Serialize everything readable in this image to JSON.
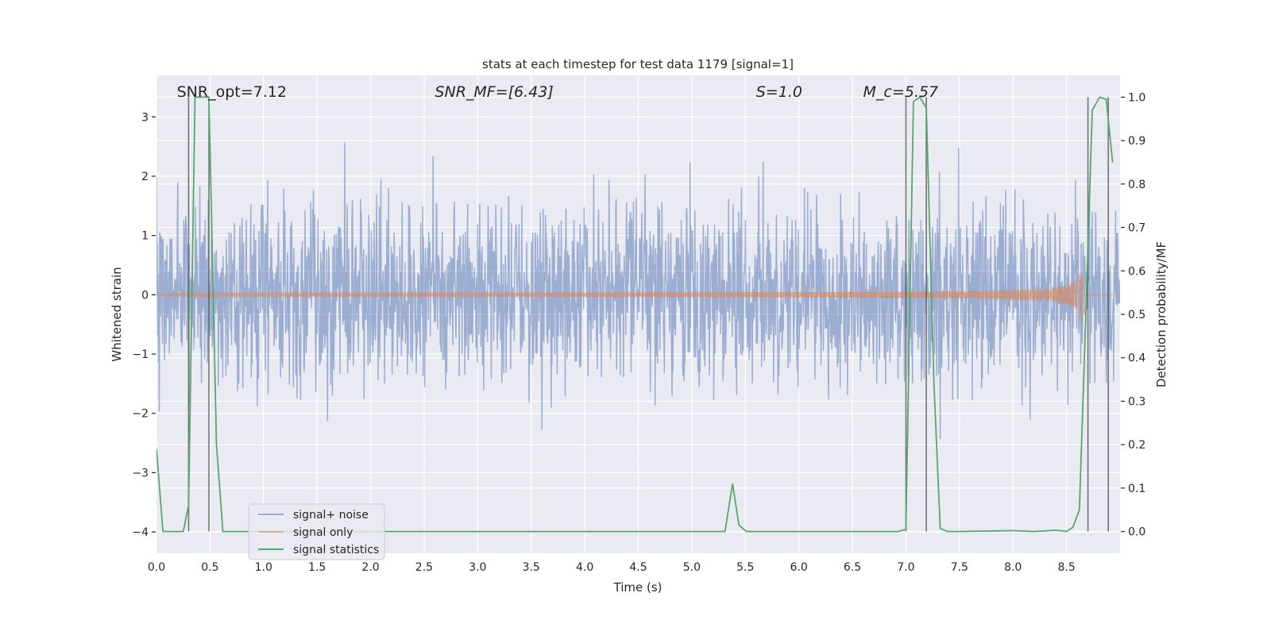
{
  "chart_data": {
    "type": "line",
    "title": "stats at each timestep for test data 1179 [signal=1]",
    "xlabel": "Time (s)",
    "ylabel": "Whitened strain",
    "ylabel_right": "Detection probability/MF",
    "xlim": [
      0.0,
      9.0
    ],
    "ylim": [
      -4.36,
      3.7
    ],
    "ylim_right": [
      -0.05,
      1.05
    ],
    "xticks": [
      "0.0",
      "0.5",
      "1.0",
      "1.5",
      "2.0",
      "2.5",
      "3.0",
      "3.5",
      "4.0",
      "4.5",
      "5.0",
      "5.5",
      "6.0",
      "6.5",
      "7.0",
      "7.5",
      "8.0",
      "8.5"
    ],
    "xtick_values": [
      0,
      0.5,
      1,
      1.5,
      2,
      2.5,
      3,
      3.5,
      4,
      4.5,
      5,
      5.5,
      6,
      6.5,
      7,
      7.5,
      8,
      8.5
    ],
    "yticks": [
      "3",
      "2",
      "1",
      "0",
      "−1",
      "−2",
      "−3",
      "−4"
    ],
    "ytick_values": [
      3,
      2,
      1,
      0,
      -1,
      -2,
      -3,
      -4
    ],
    "yticks_right": [
      "1.0",
      "0.9",
      "0.8",
      "0.7",
      "0.6",
      "0.5",
      "0.4",
      "0.3",
      "0.2",
      "0.1",
      "0.0"
    ],
    "ytick_values_right": [
      1.0,
      0.9,
      0.8,
      0.7,
      0.6,
      0.5,
      0.4,
      0.3,
      0.2,
      0.1,
      0.0
    ],
    "grid": true,
    "legend_position": "lower-left",
    "annotations": [
      {
        "text": "SNR_opt=7.12",
        "x": 0.19
      },
      {
        "text": "SNR_MF=[6.43]",
        "x": 2.6,
        "italic_prefix": "SNR",
        "sub": "M",
        "suffix": "F=[6.43]"
      },
      {
        "text": "S=1.0",
        "x": 5.6,
        "italic_prefix": "S",
        "suffix": "=1.0"
      },
      {
        "text": "M_c=5.57",
        "x": 6.6,
        "italic_prefix": "M",
        "sub": "c",
        "suffix": "=5.57"
      }
    ],
    "vertical_lines": [
      0.3,
      0.49,
      7.0,
      7.19,
      8.7,
      8.89
    ],
    "series": [
      {
        "name": "signal+ noise",
        "color": "#4c72b0",
        "axis": "left",
        "kind": "noise",
        "noise_std": 0.75,
        "duration": 9.0
      },
      {
        "name": "signal only",
        "color": "#dd8452",
        "axis": "left",
        "kind": "chirp",
        "start_amp": 0.01,
        "peak_amp": 0.7,
        "merger_time": 8.65
      },
      {
        "name": "signal statistics",
        "color": "#55a868",
        "axis": "right",
        "kind": "line",
        "x": [
          0.0,
          0.06,
          0.12,
          0.25,
          0.3,
          0.36,
          0.43,
          0.49,
          0.56,
          0.62,
          1.0,
          2.0,
          3.0,
          4.0,
          5.0,
          5.31,
          5.38,
          5.44,
          5.51,
          6.0,
          6.5,
          6.93,
          7.0,
          7.07,
          7.13,
          7.19,
          7.26,
          7.32,
          7.39,
          7.5,
          8.0,
          8.2,
          8.4,
          8.5,
          8.56,
          8.62,
          8.68,
          8.74,
          8.81,
          8.87,
          8.93
        ],
        "y": [
          0.19,
          0.0,
          0.0,
          0.0,
          0.06,
          1.0,
          1.0,
          1.0,
          0.2,
          0.0,
          0.0,
          0.0,
          0.0,
          0.0,
          0.0,
          0.0,
          0.11,
          0.015,
          0.0,
          0.0,
          0.0,
          0.0,
          0.005,
          0.99,
          1.0,
          0.975,
          0.35,
          0.007,
          0.0,
          0.0,
          0.002,
          0.0,
          0.003,
          0.0,
          0.01,
          0.05,
          0.5,
          0.97,
          1.0,
          0.995,
          0.85
        ]
      }
    ]
  }
}
